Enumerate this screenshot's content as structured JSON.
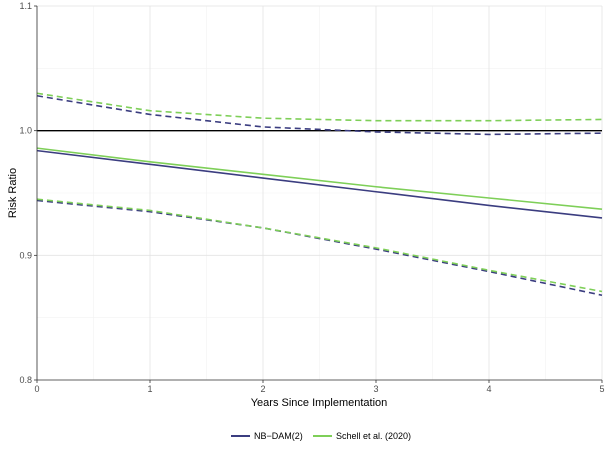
{
  "chart_data": {
    "type": "line",
    "xlabel": "Years Since Implementation",
    "ylabel": "Risk Ratio",
    "xlim": [
      0,
      5
    ],
    "ylim": [
      0.8,
      1.1
    ],
    "x_ticks": [
      "0",
      "1",
      "2",
      "3",
      "4",
      "5"
    ],
    "y_ticks": [
      "0.8",
      "0.9",
      "1.0",
      "1.1"
    ],
    "grid": true,
    "legend_position": "bottom",
    "reference_line": 1.0,
    "x": [
      0,
      1,
      2,
      3,
      4,
      5
    ],
    "series": [
      {
        "name": "NB−DAM(2)",
        "color": "#3b3d80",
        "estimate": [
          0.984,
          0.973,
          0.962,
          0.951,
          0.94,
          0.93
        ],
        "upper": [
          1.028,
          1.013,
          1.003,
          0.999,
          0.997,
          0.998
        ],
        "lower": [
          0.944,
          0.935,
          0.922,
          0.905,
          0.887,
          0.868
        ]
      },
      {
        "name": "Schell et al. (2020)",
        "color": "#7ecf58",
        "estimate": [
          0.986,
          0.975,
          0.965,
          0.955,
          0.946,
          0.937
        ],
        "upper": [
          1.03,
          1.016,
          1.01,
          1.008,
          1.008,
          1.009
        ],
        "lower": [
          0.945,
          0.936,
          0.922,
          0.906,
          0.888,
          0.871
        ]
      }
    ]
  }
}
